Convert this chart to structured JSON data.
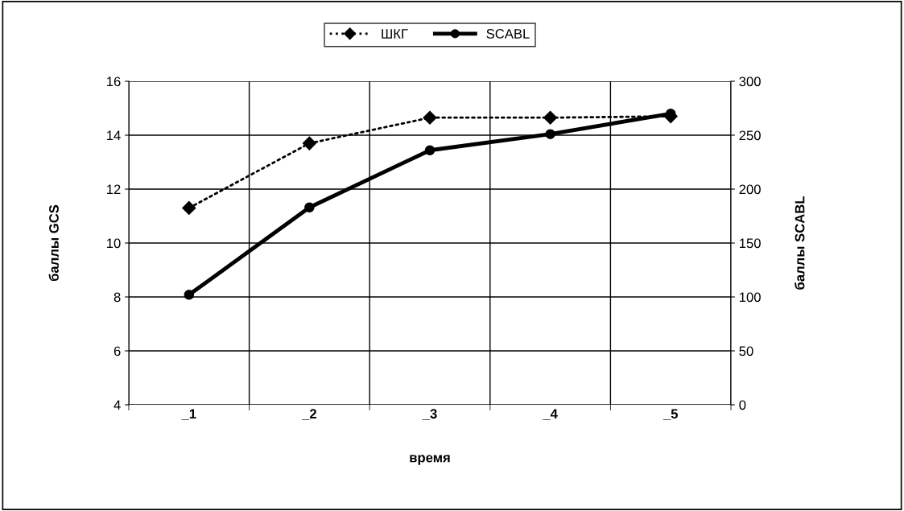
{
  "chart_data": {
    "type": "line",
    "xlabel": "время",
    "ylabel": "баллы GCS",
    "y2label": "баллы SCABL",
    "categories": [
      "_1",
      "_2",
      "_3",
      "_4",
      "_5"
    ],
    "series": [
      {
        "name": "ШКГ",
        "color": "#000000",
        "values": [
          11.3,
          13.7,
          14.65,
          14.65,
          14.7
        ],
        "marker": "diamond",
        "line_style": "dotted"
      },
      {
        "name": "SCABL",
        "color": "#000000",
        "values": [
          102,
          183,
          236,
          251,
          270
        ],
        "marker": "circle",
        "line_style": "solid",
        "axis": "y2"
      }
    ],
    "ylim": [
      4,
      16
    ],
    "yticks": [
      4,
      6,
      8,
      10,
      12,
      14,
      16
    ],
    "y2lim": [
      0,
      300
    ],
    "y2ticks": [
      0,
      50,
      100,
      150,
      200,
      250,
      300
    ],
    "grid": true,
    "legend": "top"
  }
}
